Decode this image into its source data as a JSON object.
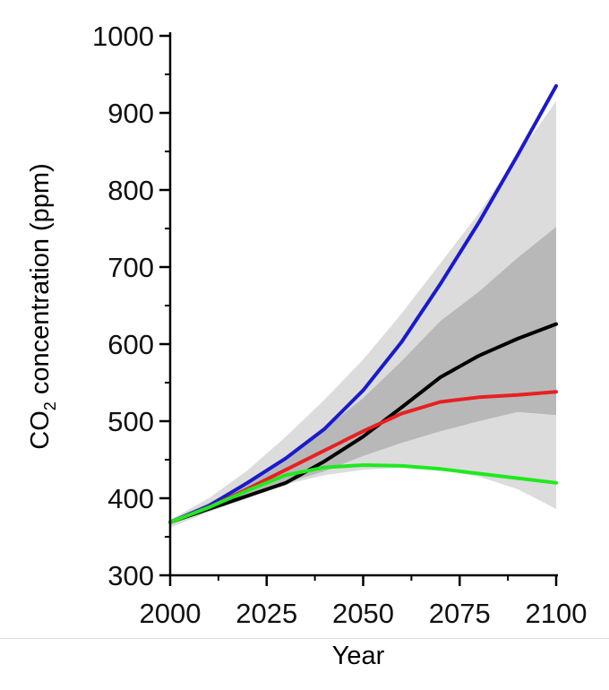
{
  "chart_data": {
    "type": "line",
    "xlabel": "Year",
    "ylabel_main": "CO",
    "ylabel_sub": "2",
    "ylabel_rest": " concentration (ppm)",
    "xlim": [
      2000,
      2100
    ],
    "ylim": [
      300,
      1000
    ],
    "x_ticks": [
      "2000",
      "2025",
      "2050",
      "2075",
      "2100"
    ],
    "y_ticks": [
      "300",
      "400",
      "500",
      "600",
      "700",
      "800",
      "900",
      "1000"
    ],
    "grid": false,
    "bands": [
      {
        "color": "#dcdcdc",
        "x": [
          2000,
          2010,
          2020,
          2030,
          2040,
          2050,
          2060,
          2070,
          2080,
          2090,
          2100
        ],
        "upper": [
          372,
          400,
          436,
          480,
          528,
          580,
          640,
          705,
          770,
          845,
          915
        ],
        "lower": [
          362,
          382,
          400,
          418,
          430,
          437,
          440,
          437,
          428,
          412,
          386
        ]
      },
      {
        "color": "#b8b8b8",
        "x": [
          2000,
          2010,
          2020,
          2030,
          2040,
          2050,
          2060,
          2070,
          2080,
          2090,
          2100
        ],
        "upper": [
          371,
          394,
          420,
          452,
          490,
          530,
          578,
          630,
          668,
          712,
          752
        ],
        "lower": [
          366,
          384,
          400,
          420,
          435,
          455,
          472,
          487,
          500,
          512,
          508
        ]
      }
    ],
    "series": [
      {
        "color": "#1a1acc",
        "x": [
          2000,
          2010,
          2020,
          2030,
          2040,
          2050,
          2060,
          2070,
          2080,
          2090,
          2100
        ],
        "values": [
          369,
          390,
          420,
          452,
          490,
          540,
          603,
          678,
          758,
          845,
          935
        ]
      },
      {
        "color": "#000000",
        "x": [
          2000,
          2010,
          2020,
          2030,
          2040,
          2050,
          2060,
          2070,
          2080,
          2090,
          2100
        ],
        "values": [
          369,
          386,
          403,
          420,
          448,
          480,
          518,
          557,
          585,
          607,
          626
        ]
      },
      {
        "color": "#e82020",
        "x": [
          2000,
          2010,
          2020,
          2030,
          2040,
          2050,
          2060,
          2070,
          2080,
          2090,
          2100
        ],
        "values": [
          369,
          388,
          412,
          437,
          462,
          487,
          510,
          525,
          531,
          534,
          538
        ]
      },
      {
        "color": "#20e820",
        "x": [
          2000,
          2010,
          2020,
          2030,
          2040,
          2050,
          2060,
          2070,
          2080,
          2090,
          2100
        ],
        "values": [
          369,
          388,
          410,
          430,
          440,
          443,
          442,
          438,
          432,
          426,
          420
        ]
      }
    ]
  }
}
